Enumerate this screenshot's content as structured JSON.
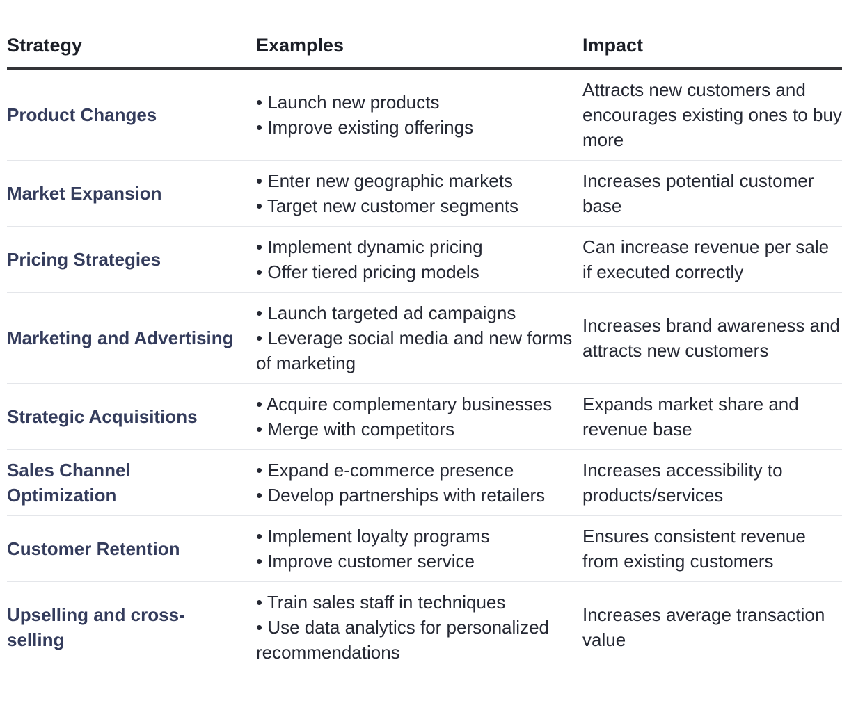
{
  "table": {
    "headers": {
      "strategy": "Strategy",
      "examples": "Examples",
      "impact": "Impact"
    },
    "rows": [
      {
        "strategy": "Product Changes",
        "examples": [
          "• Launch new products",
          "• Improve existing offerings"
        ],
        "impact": "Attracts new customers and encourages existing ones to buy more"
      },
      {
        "strategy": "Market Expansion",
        "examples": [
          "• Enter new geographic markets",
          "• Target new customer segments"
        ],
        "impact": "Increases potential customer base"
      },
      {
        "strategy": "Pricing Strategies",
        "examples": [
          "• Implement dynamic pricing",
          "• Offer tiered pricing models"
        ],
        "impact": "Can increase revenue per sale if executed correctly"
      },
      {
        "strategy": "Marketing and Advertising",
        "examples": [
          "• Launch targeted ad campaigns",
          "• Leverage social media and new forms of marketing"
        ],
        "impact": "Increases brand awareness and attracts new customers"
      },
      {
        "strategy": "Strategic Acquisitions",
        "examples": [
          "• Acquire complementary businesses",
          "• Merge with competitors"
        ],
        "impact": "Expands market share and revenue base"
      },
      {
        "strategy": "Sales Channel Optimization",
        "examples": [
          "• Expand e-commerce presence",
          "• Develop partnerships with retailers"
        ],
        "impact": "Increases accessibility to products/services"
      },
      {
        "strategy": "Customer Retention",
        "examples": [
          "• Implement loyalty programs",
          "• Improve customer service"
        ],
        "impact": "Ensures consistent revenue from existing customers"
      },
      {
        "strategy": "Upselling and cross-selling",
        "examples": [
          "• Train sales staff in techniques",
          "• Use data analytics for personalized recommendations"
        ],
        "impact": "Increases average transaction value"
      }
    ]
  }
}
